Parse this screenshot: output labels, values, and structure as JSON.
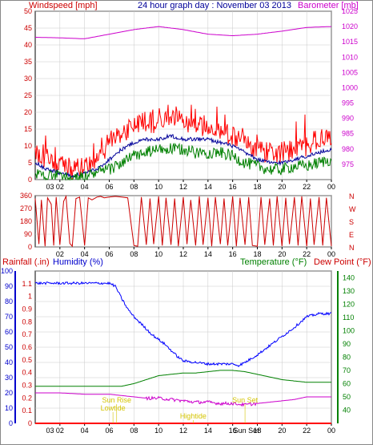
{
  "header": {
    "left_label": "Windspeed [mph]",
    "title": "24 hour graph day : November 03 2013",
    "right_label": "Barometer [mb]"
  },
  "colors": {
    "red": "#ff0000",
    "darkred": "#cc0000",
    "blue": "#0000ff",
    "navy": "#000099",
    "green": "#008000",
    "magenta": "#cc00cc",
    "yellow": "#d4c400",
    "grid": "#c8c8c8",
    "frame": "#000000"
  },
  "chart_data": [
    {
      "id": "wind_baro",
      "type": "line",
      "x_ticks": [
        "02",
        "04",
        "06",
        "08",
        "10",
        "12",
        "14",
        "16",
        "18",
        "20",
        "22",
        "00"
      ],
      "xlabel_left_extra": "03",
      "ylim_left": [
        0,
        50
      ],
      "yticks_left": [
        0,
        5,
        10,
        15,
        20,
        25,
        30,
        35,
        40,
        45,
        50
      ],
      "ylim_right": [
        970,
        1025
      ],
      "yticks_right": [
        975,
        980,
        985,
        990,
        995,
        1000,
        1005,
        1010,
        1015,
        1020,
        1025
      ],
      "series": [
        {
          "name": "Windspeed",
          "role": "gust",
          "color": "#ff0000",
          "axis": "left",
          "x_hours": [
            0,
            1,
            2,
            3,
            4,
            5,
            5.6,
            6,
            7,
            8,
            9,
            10,
            11,
            12,
            13,
            14,
            15,
            16,
            17,
            18,
            19,
            20,
            21,
            22,
            23,
            24
          ],
          "values": [
            8,
            6,
            4,
            3,
            4,
            6,
            9,
            11,
            14,
            16,
            17,
            17,
            18,
            17,
            16,
            16,
            15,
            13,
            11,
            9,
            8,
            8,
            9,
            10,
            12,
            13
          ]
        },
        {
          "name": "Windspeed",
          "role": "average",
          "color": "#000099",
          "axis": "left",
          "x_hours": [
            0,
            1,
            2,
            3,
            4,
            5,
            6,
            7,
            8,
            9,
            10,
            11,
            12,
            13,
            14,
            15,
            16,
            17,
            18,
            19,
            20,
            21,
            22,
            23,
            24
          ],
          "values": [
            5,
            3,
            2,
            1,
            2,
            3,
            6,
            9,
            11,
            12,
            12,
            13,
            12,
            12,
            12,
            11,
            10,
            8,
            6,
            5,
            5,
            6,
            7,
            8,
            9
          ]
        },
        {
          "name": "Windspeed",
          "role": "low",
          "color": "#008000",
          "axis": "left",
          "x_hours": [
            0,
            1,
            2,
            3,
            4,
            5,
            6,
            7,
            8,
            9,
            10,
            11,
            12,
            13,
            14,
            15,
            16,
            17,
            18,
            19,
            20,
            21,
            22,
            23,
            24
          ],
          "values": [
            2,
            1,
            1,
            0,
            1,
            2,
            3,
            5,
            7,
            8,
            9,
            9,
            9,
            8,
            8,
            8,
            7,
            5,
            4,
            3,
            3,
            4,
            4,
            5,
            6
          ]
        },
        {
          "name": "Barometer",
          "color": "#cc00cc",
          "axis": "right",
          "x_hours": [
            0,
            2,
            4,
            6,
            8,
            10,
            12,
            14,
            16,
            18,
            20,
            22,
            24
          ],
          "values": [
            1016.5,
            1016.3,
            1016.0,
            1017.5,
            1019.0,
            1020.0,
            1019.0,
            1017.5,
            1017.0,
            1017.5,
            1018.5,
            1019.7,
            1020.0
          ]
        }
      ]
    },
    {
      "id": "wind_dir",
      "type": "scatter",
      "ylim": [
        0,
        360
      ],
      "yticks": [
        0,
        90,
        180,
        270,
        360
      ],
      "compass_labels": [
        "N",
        "W",
        "S",
        "E",
        "N"
      ],
      "x_ticks": [
        "02",
        "04",
        "06",
        "08",
        "10",
        "12",
        "14",
        "16",
        "18",
        "20",
        "22",
        "00"
      ],
      "series": [
        {
          "name": "Wind Direction",
          "color": "#cc0000",
          "x_hours": [
            0,
            0.3,
            0.5,
            0.8,
            1.0,
            1.3,
            1.5,
            1.7,
            2.0,
            2.3,
            2.5,
            2.8,
            3.0,
            3.3,
            3.6,
            4.0,
            4.3,
            4.6,
            5.0,
            5.3,
            5.6,
            6.0,
            6.5,
            7.0,
            7.5,
            8.0,
            8.3,
            8.6,
            9.0,
            9.3,
            9.6,
            10.0,
            10.3,
            10.6,
            11.0,
            11.3,
            11.6,
            12.0,
            12.3,
            12.6,
            13.0,
            13.3,
            13.6,
            14.0,
            14.3,
            14.6,
            15.0,
            15.3,
            15.6,
            16.0,
            16.3,
            16.6,
            17.0,
            17.3,
            17.6,
            18.0,
            18.3,
            18.6,
            19.0,
            19.3,
            19.6,
            20.0,
            20.3,
            20.6,
            21.0,
            21.3,
            21.6,
            22.0,
            22.3,
            22.6,
            23.0,
            23.3,
            23.6,
            24.0
          ],
          "values": [
            340,
            20,
            330,
            5,
            345,
            300,
            10,
            350,
            15,
            320,
            355,
            25,
            5,
            340,
            350,
            10,
            345,
            330,
            350,
            355,
            345,
            350,
            355,
            350,
            345,
            10,
            5,
            350,
            15,
            340,
            20,
            355,
            10,
            345,
            15,
            340,
            5,
            350,
            20,
            330,
            10,
            355,
            15,
            345,
            5,
            350,
            20,
            340,
            10,
            355,
            5,
            345,
            15,
            350,
            10,
            5,
            350,
            15,
            340,
            10,
            355,
            5,
            345,
            20,
            350,
            10,
            355,
            5,
            340,
            15,
            350,
            10,
            345,
            5
          ]
        }
      ]
    },
    {
      "id": "rain_hum_temp",
      "type": "line",
      "header_left": "Rainfall (.in)",
      "header_left2": "Humidity (%)",
      "header_right": "Temperature (°F)",
      "header_right2": "Dew Point (°F)",
      "x_ticks": [
        "02",
        "04",
        "06",
        "08",
        "10",
        "12",
        "14",
        "16",
        "18",
        "20",
        "22",
        "00"
      ],
      "xlabel_left_extra": "03",
      "ylim_humidity": [
        0,
        100
      ],
      "yticks_humidity": [
        0,
        10,
        20,
        30,
        40,
        50,
        60,
        70,
        80,
        90,
        100
      ],
      "ylim_rain": [
        0,
        1.2
      ],
      "yticks_rain": [
        0,
        0.1,
        0.2,
        0.3,
        0.4,
        0.5,
        0.6,
        0.7,
        0.8,
        0.9,
        1,
        1.1
      ],
      "ylim_temp": [
        30,
        145
      ],
      "yticks_temp": [
        40,
        50,
        60,
        70,
        80,
        90,
        100,
        110,
        120,
        130,
        140
      ],
      "series": [
        {
          "name": "Humidity",
          "color": "#0000ff",
          "axis": "humidity",
          "x_hours": [
            0,
            1,
            2,
            3,
            4,
            5,
            6,
            6.5,
            7,
            7.5,
            8,
            8.5,
            9,
            9.5,
            10,
            10.5,
            11,
            11.5,
            12,
            13,
            14,
            15,
            16,
            16.5,
            17,
            18,
            19,
            20,
            21,
            22,
            23,
            24
          ],
          "values": [
            92,
            92,
            92,
            92,
            92,
            92,
            92,
            90,
            82,
            75,
            70,
            66,
            62,
            58,
            55,
            52,
            48,
            44,
            41,
            40,
            39,
            39,
            39,
            38,
            40,
            45,
            51,
            57,
            63,
            70,
            72,
            72
          ]
        },
        {
          "name": "Temperature",
          "color": "#008000",
          "axis": "temp",
          "x_hours": [
            0,
            2,
            4,
            6,
            7,
            8,
            9,
            10,
            11,
            12,
            13,
            14,
            15,
            16,
            17,
            18,
            19,
            20,
            21,
            22,
            23,
            24
          ],
          "values": [
            58,
            58,
            58,
            58,
            58,
            60,
            63,
            66,
            67,
            68,
            68,
            69,
            70,
            70,
            69,
            67,
            65,
            63,
            62,
            61,
            61,
            61
          ]
        },
        {
          "name": "Dew Point",
          "color": "#cc00cc",
          "axis": "temp",
          "x_hours": [
            0,
            2,
            4,
            6,
            7,
            8,
            9,
            10,
            11,
            12,
            13,
            14,
            15,
            16,
            17,
            18,
            19,
            20,
            21,
            22,
            23,
            24
          ],
          "values": [
            53,
            53,
            52,
            52,
            51,
            50,
            49,
            49,
            48,
            47,
            46,
            46,
            45,
            45,
            44,
            45,
            46,
            47,
            48,
            50,
            50,
            50
          ]
        },
        {
          "name": "Rainfall",
          "color": "#ff0000",
          "axis": "rain",
          "x_hours": [
            0,
            24
          ],
          "values": [
            0,
            0
          ]
        }
      ],
      "annotations": [
        {
          "text": "Sun Rise",
          "hour": 6.6,
          "row": 1
        },
        {
          "text": "Lowtide",
          "hour": 6.3,
          "row": 2
        },
        {
          "text": "Hightide",
          "hour": 12.8,
          "row": 3
        },
        {
          "text": "Sun Set",
          "hour": 17.0,
          "row": 1
        }
      ],
      "x_marker_labels": [
        "Sun Set"
      ]
    }
  ]
}
